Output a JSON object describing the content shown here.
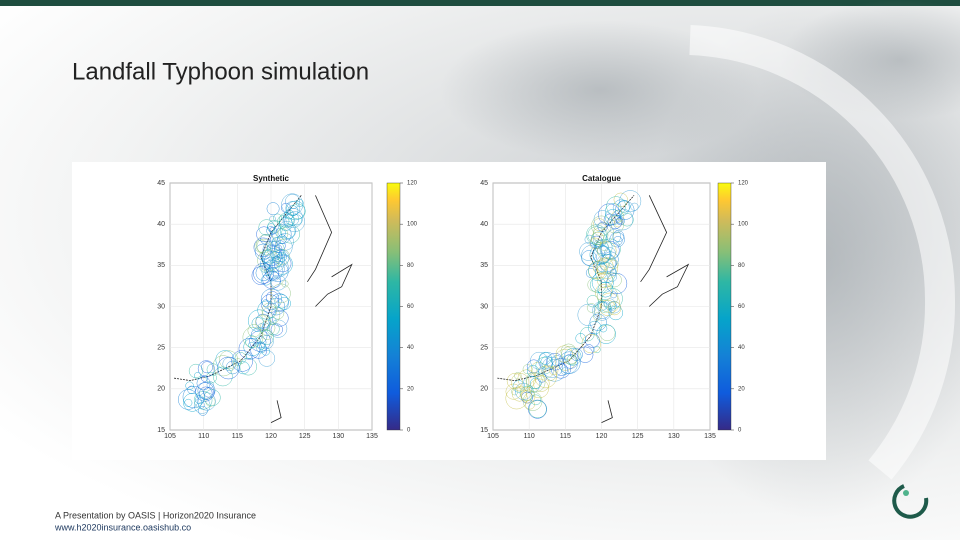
{
  "header": {
    "title": "Landfall Typhoon simulation"
  },
  "figures": [
    {
      "title": "Synthetic",
      "yticks": [
        45,
        40,
        35,
        30,
        25,
        20,
        15
      ],
      "xticks": [
        105,
        110,
        115,
        120,
        125,
        130,
        135
      ],
      "colorbar_ticks": [
        120,
        100,
        80,
        60,
        40,
        20,
        0
      ]
    },
    {
      "title": "Catalogue",
      "yticks": [
        45,
        40,
        35,
        30,
        25,
        20,
        15
      ],
      "xticks": [
        105,
        110,
        115,
        120,
        125,
        130,
        135
      ],
      "colorbar_ticks": [
        120,
        100,
        80,
        60,
        40,
        20,
        0
      ]
    }
  ],
  "footer": {
    "line1": "A Presentation by OASIS | Horizon2020 Insurance",
    "line2": "www.h2020insurance.oasishub.co"
  }
}
